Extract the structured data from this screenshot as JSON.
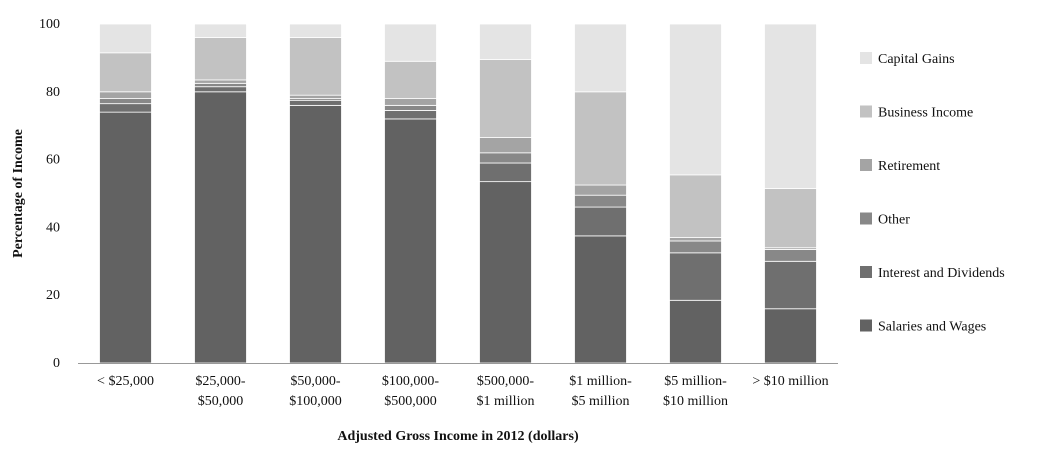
{
  "chart_data": {
    "type": "bar",
    "stacked": true,
    "categories": [
      [
        "< $25,000"
      ],
      [
        "$25,000-",
        "$50,000"
      ],
      [
        "$50,000-",
        "$100,000"
      ],
      [
        "$100,000-",
        "$500,000"
      ],
      [
        "$500,000-",
        "$1 million"
      ],
      [
        "$1 million-",
        "$5 million"
      ],
      [
        "$5 million-",
        "$10 million"
      ],
      [
        "> $10 million"
      ]
    ],
    "series": [
      {
        "name": "Salaries and Wages",
        "color": "#626262",
        "values": [
          74,
          80,
          76,
          72,
          53.5,
          37.5,
          18.5,
          16
        ]
      },
      {
        "name": "Interest and Dividends",
        "color": "#6f6f6f",
        "values": [
          2.5,
          1.5,
          1.5,
          2.5,
          5.5,
          8.5,
          14,
          14
        ]
      },
      {
        "name": "Other",
        "color": "#888888",
        "values": [
          1.5,
          1,
          0.5,
          1.5,
          3,
          3.5,
          3.5,
          3.5
        ]
      },
      {
        "name": "Retirement",
        "color": "#a4a4a4",
        "values": [
          2,
          1,
          1,
          2,
          4.5,
          3,
          1,
          0.5
        ]
      },
      {
        "name": "Business Income",
        "color": "#c2c2c2",
        "values": [
          11.5,
          12.5,
          17,
          11,
          23,
          27.5,
          18.5,
          17.5
        ]
      },
      {
        "name": "Capital Gains",
        "color": "#e4e4e4",
        "values": [
          8.5,
          4,
          4,
          11,
          10.5,
          20,
          44.5,
          48.5
        ]
      }
    ],
    "xlabel": "Adjusted Gross Income in 2012 (dollars)",
    "ylabel": "Percentage of Income",
    "ylim": [
      0,
      100
    ],
    "yticks": [
      0,
      20,
      40,
      60,
      80,
      100
    ],
    "grid": false,
    "legend": {
      "position": "right",
      "order": [
        "Capital Gains",
        "Business Income",
        "Retirement",
        "Other",
        "Interest and Dividends",
        "Salaries and Wages"
      ]
    }
  }
}
